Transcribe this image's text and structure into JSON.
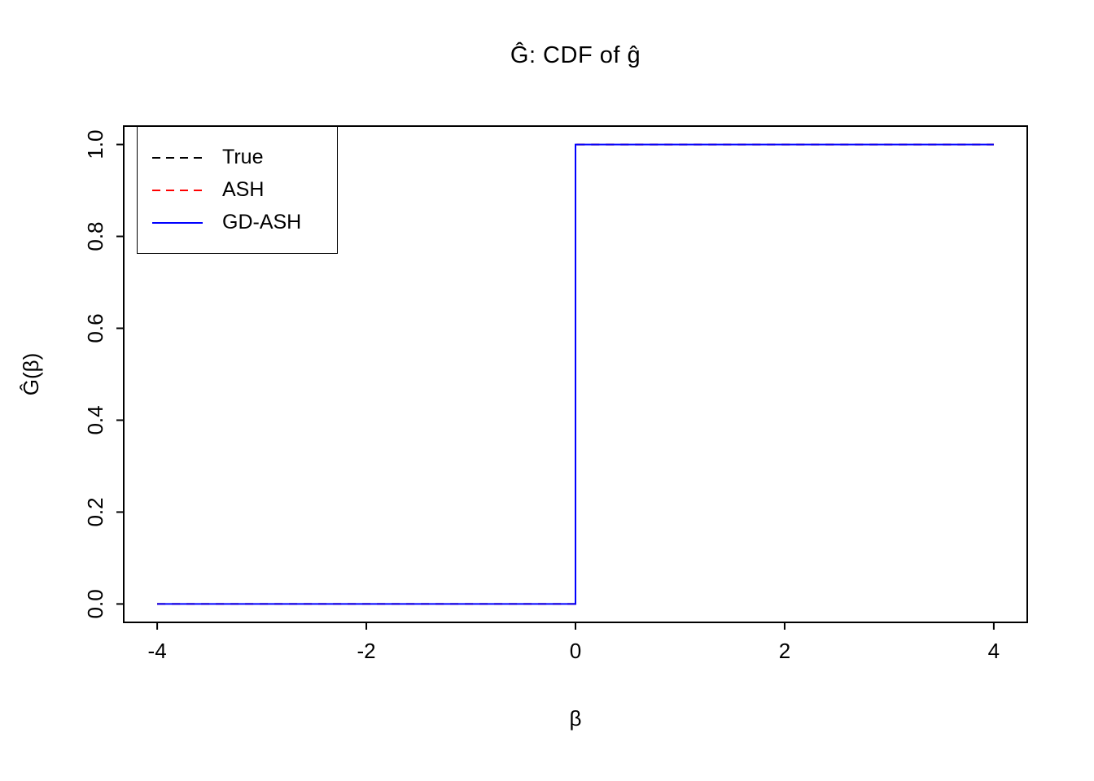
{
  "chart_data": {
    "type": "line",
    "title": "Ĝ: CDF of ĝ",
    "xlabel": "β",
    "ylabel": "Ĝ(β)",
    "xlim": [
      -4,
      4
    ],
    "ylim": [
      0,
      1
    ],
    "axis_expansion": 0.04,
    "grid": false,
    "frame_color": "#000000",
    "background_color": "#ffffff",
    "x_ticks": [
      -4,
      -2,
      0,
      2,
      4
    ],
    "x_tick_labels": [
      "-4",
      "-2",
      "0",
      "2",
      "4"
    ],
    "y_ticks": [
      0.0,
      0.2,
      0.4,
      0.6,
      0.8,
      1.0
    ],
    "y_tick_labels": [
      "0.0",
      "0.2",
      "0.4",
      "0.6",
      "0.8",
      "1.0"
    ],
    "legend": {
      "position": "top-left",
      "entries": [
        {
          "label": "True",
          "color": "#000000",
          "line_style": "dashed"
        },
        {
          "label": "ASH",
          "color": "#ff0000",
          "line_style": "dashed"
        },
        {
          "label": "GD-ASH",
          "color": "#0000ff",
          "line_style": "solid"
        }
      ]
    },
    "series": [
      {
        "name": "True",
        "color": "#000000",
        "line_style": "dashed",
        "x": [
          -4,
          0,
          0,
          4
        ],
        "y": [
          0,
          0,
          1,
          1
        ]
      },
      {
        "name": "ASH",
        "color": "#ff0000",
        "line_style": "dashed",
        "x": [
          -4,
          0,
          0,
          4
        ],
        "y": [
          0,
          0,
          1,
          1
        ]
      },
      {
        "name": "GD-ASH",
        "color": "#0000ff",
        "line_style": "solid",
        "x": [
          -4,
          0,
          0,
          4
        ],
        "y": [
          0,
          0,
          1,
          1
        ]
      }
    ]
  }
}
